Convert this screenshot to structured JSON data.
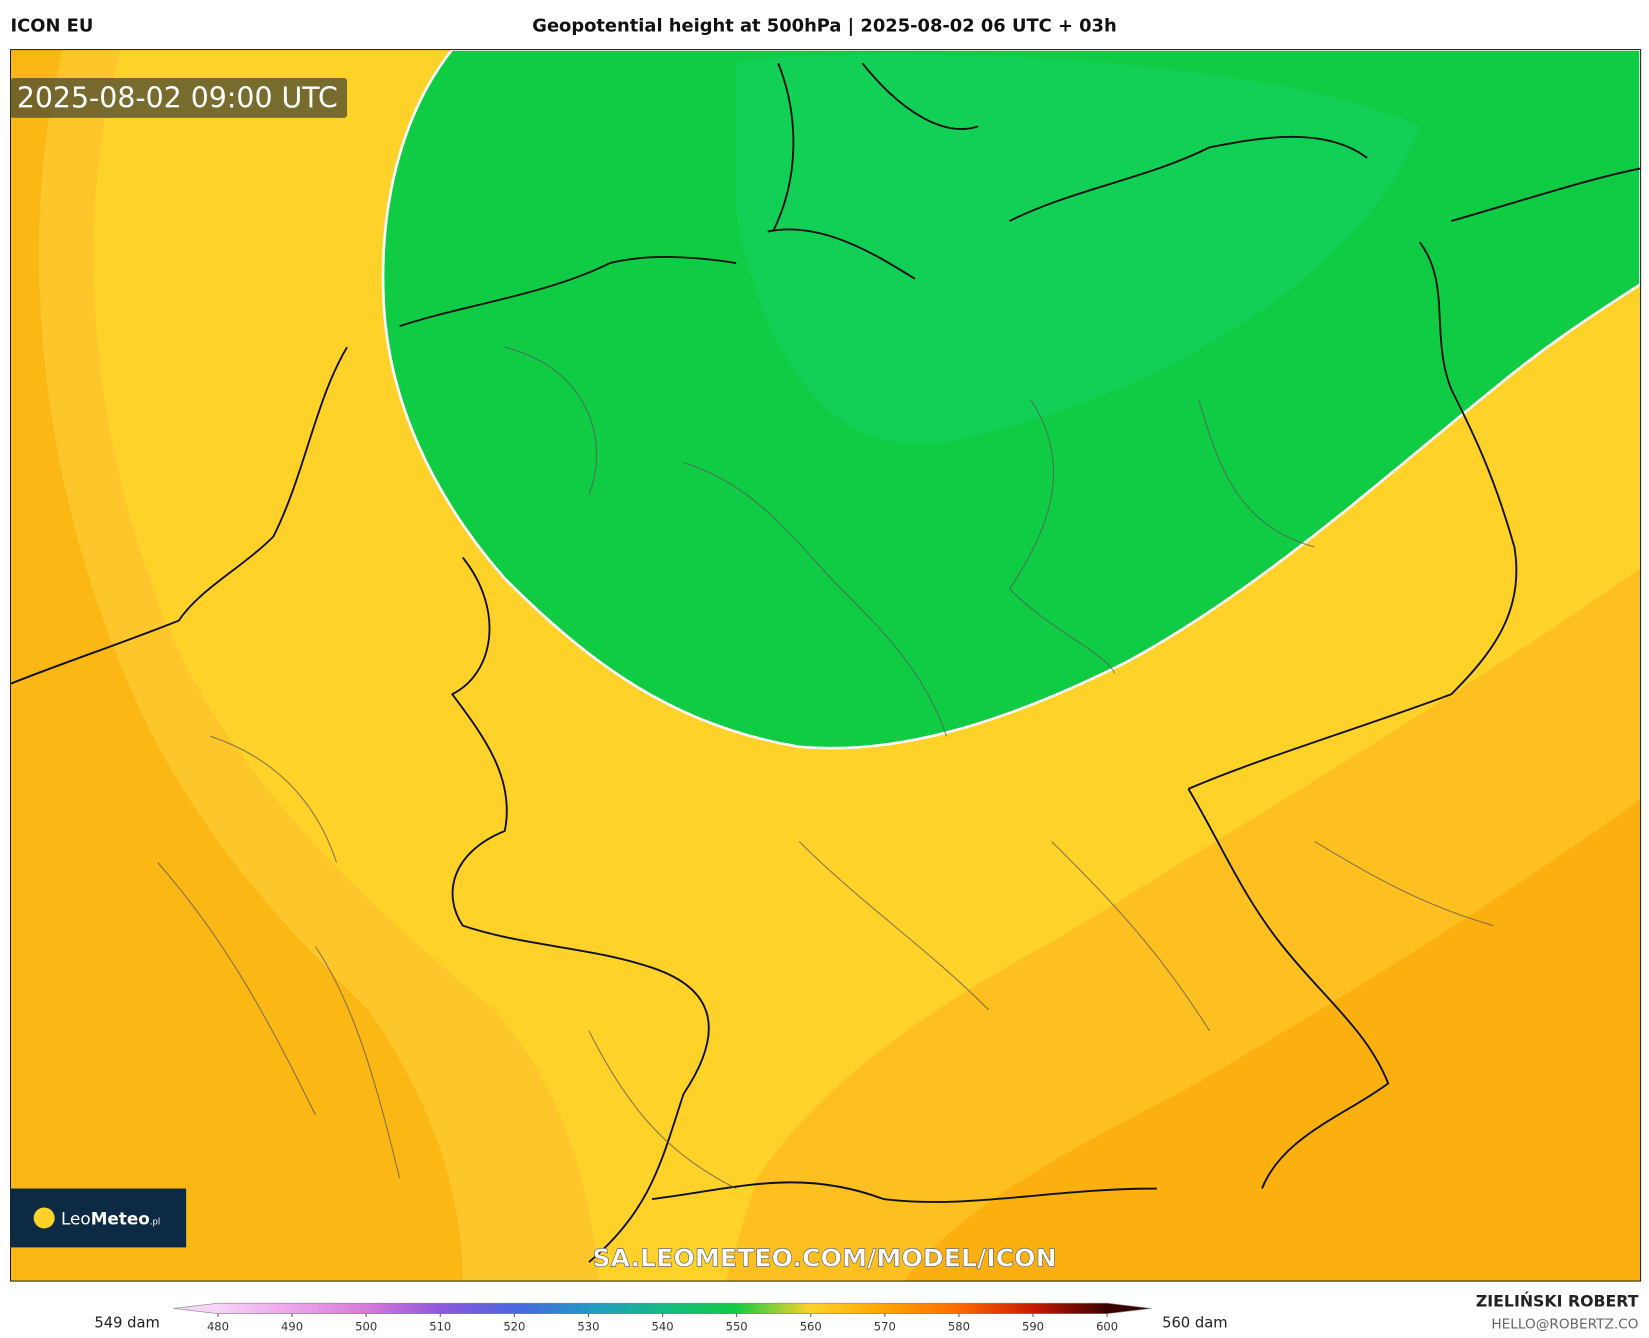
{
  "header": {
    "model": "ICON EU",
    "title": "Geopotential height at 500hPa | 2025-08-02 06 UTC + 03h"
  },
  "map": {
    "timestamp": "2025-08-02 09:00 UTC",
    "watermark": "SA.LEOMETEO.COM/MODEL/ICON",
    "logo_leo": "Leo",
    "logo_meteo": "Meteo",
    "logo_tld": ".pl"
  },
  "legend": {
    "min_label": "549 dam",
    "max_label": "560 dam",
    "lim": [
      474,
      606
    ],
    "ticks": [
      480,
      490,
      500,
      510,
      520,
      530,
      540,
      550,
      560,
      570,
      580,
      590,
      600
    ],
    "colors": [
      "#f6d4f6",
      "#eca4ec",
      "#d77ad9",
      "#8e58dc",
      "#4b66e0",
      "#2398c4",
      "#16bb86",
      "#12cc44",
      "#ffd22a",
      "#ffa400",
      "#ff6a00",
      "#c81a00",
      "#3a0000"
    ]
  },
  "footer": {
    "author": "ZIELIŃSKI ROBERT",
    "email": "HELLO@ROBERTZ.CO"
  }
}
